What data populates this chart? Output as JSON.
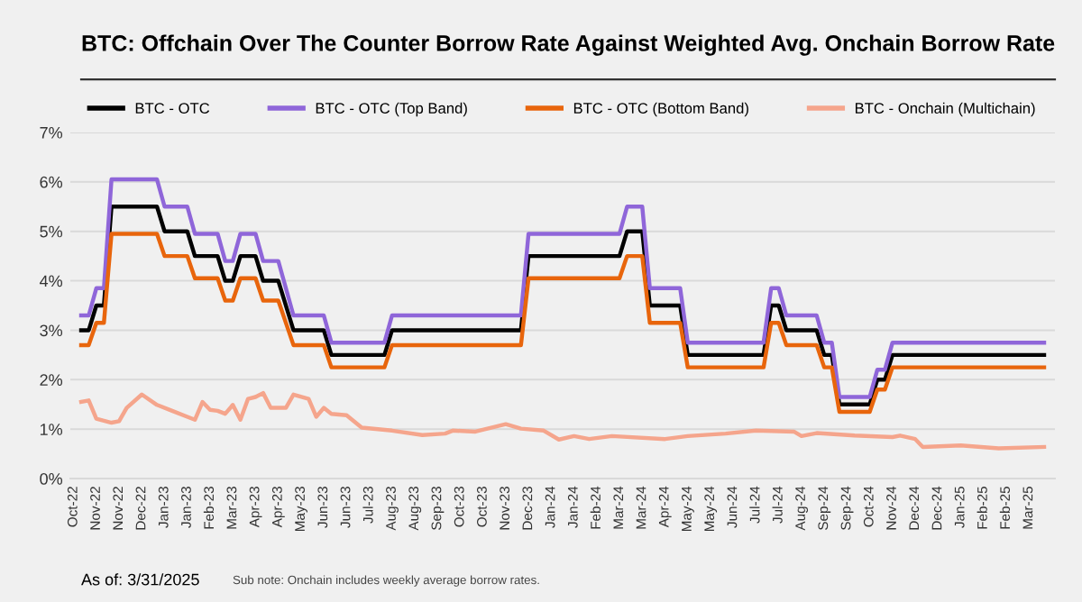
{
  "chart_data": {
    "type": "line",
    "title": "BTC: Offchain Over The Counter Borrow Rate Against Weighted Avg. Onchain Borrow Rate",
    "annotations": [
      "As of: 3/31/2025",
      "Sub note: Onchain includes weekly average borrow rates."
    ],
    "xlim": [
      "2022-10-14",
      "2025-04-10"
    ],
    "xticks": [
      {
        "value": "2022-10-17",
        "label": "Oct-22"
      },
      {
        "value": "2022-11-07",
        "label": "Nov-22"
      },
      {
        "value": "2022-11-28",
        "label": "Nov-22"
      },
      {
        "value": "2022-12-19",
        "label": "Dec-22"
      },
      {
        "value": "2023-01-09",
        "label": "Jan-23"
      },
      {
        "value": "2023-01-30",
        "label": "Jan-23"
      },
      {
        "value": "2023-02-20",
        "label": "Feb-23"
      },
      {
        "value": "2023-03-13",
        "label": "Mar-23"
      },
      {
        "value": "2023-04-03",
        "label": "Apr-23"
      },
      {
        "value": "2023-04-24",
        "label": "Apr-23"
      },
      {
        "value": "2023-05-15",
        "label": "May-23"
      },
      {
        "value": "2023-06-05",
        "label": "Jun-23"
      },
      {
        "value": "2023-06-26",
        "label": "Jun-23"
      },
      {
        "value": "2023-07-17",
        "label": "Jul-23"
      },
      {
        "value": "2023-08-07",
        "label": "Aug-23"
      },
      {
        "value": "2023-08-28",
        "label": "Aug-23"
      },
      {
        "value": "2023-09-18",
        "label": "Sep-23"
      },
      {
        "value": "2023-10-09",
        "label": "Oct-23"
      },
      {
        "value": "2023-10-30",
        "label": "Oct-23"
      },
      {
        "value": "2023-11-20",
        "label": "Nov-23"
      },
      {
        "value": "2023-12-11",
        "label": "Dec-23"
      },
      {
        "value": "2024-01-01",
        "label": "Jan-24"
      },
      {
        "value": "2024-01-22",
        "label": "Jan-24"
      },
      {
        "value": "2024-02-12",
        "label": "Feb-24"
      },
      {
        "value": "2024-03-04",
        "label": "Mar-24"
      },
      {
        "value": "2024-03-25",
        "label": "Mar-24"
      },
      {
        "value": "2024-04-15",
        "label": "Apr-24"
      },
      {
        "value": "2024-05-06",
        "label": "May-24"
      },
      {
        "value": "2024-05-27",
        "label": "May-24"
      },
      {
        "value": "2024-06-17",
        "label": "Jun-24"
      },
      {
        "value": "2024-07-08",
        "label": "Jul-24"
      },
      {
        "value": "2024-07-29",
        "label": "Jul-24"
      },
      {
        "value": "2024-08-19",
        "label": "Aug-24"
      },
      {
        "value": "2024-09-09",
        "label": "Sep-24"
      },
      {
        "value": "2024-09-30",
        "label": "Sep-24"
      },
      {
        "value": "2024-10-21",
        "label": "Oct-24"
      },
      {
        "value": "2024-11-11",
        "label": "Nov-24"
      },
      {
        "value": "2024-12-02",
        "label": "Dec-24"
      },
      {
        "value": "2024-12-23",
        "label": "Dec-24"
      },
      {
        "value": "2025-01-13",
        "label": "Jan-25"
      },
      {
        "value": "2025-02-03",
        "label": "Feb-25"
      },
      {
        "value": "2025-02-24",
        "label": "Feb-25"
      },
      {
        "value": "2025-03-17",
        "label": "Mar-25"
      }
    ],
    "ylim": [
      0,
      7
    ],
    "yticks": [
      {
        "value": 0,
        "label": "0%"
      },
      {
        "value": 1,
        "label": "1%"
      },
      {
        "value": 2,
        "label": "2%"
      },
      {
        "value": 3,
        "label": "3%"
      },
      {
        "value": 4,
        "label": "4%"
      },
      {
        "value": 5,
        "label": "5%"
      },
      {
        "value": 6,
        "label": "6%"
      },
      {
        "value": 7,
        "label": "7%"
      }
    ],
    "grid": "y",
    "legend": "top",
    "marker": "none",
    "line_style": "solid",
    "series": [
      {
        "name": "BTC - OTC",
        "color": "#000000",
        "x": [
          "2022-10-24",
          "2022-10-31",
          "2022-11-07",
          "2022-11-14",
          "2022-11-21",
          "2023-01-02",
          "2023-01-09",
          "2023-01-30",
          "2023-02-06",
          "2023-02-27",
          "2023-03-06",
          "2023-03-13",
          "2023-03-20",
          "2023-04-03",
          "2023-04-10",
          "2023-04-24",
          "2023-05-08",
          "2023-06-05",
          "2023-06-12",
          "2023-07-31",
          "2023-08-07",
          "2023-12-04",
          "2023-12-11",
          "2024-03-04",
          "2024-03-11",
          "2024-03-25",
          "2024-04-01",
          "2024-04-29",
          "2024-05-06",
          "2024-07-15",
          "2024-07-22",
          "2024-07-29",
          "2024-08-05",
          "2024-09-02",
          "2024-09-09",
          "2024-09-16",
          "2024-09-23",
          "2024-10-21",
          "2024-10-28",
          "2024-11-04",
          "2024-11-11",
          "2025-03-31"
        ],
        "values": [
          3.0,
          3.0,
          3.5,
          3.5,
          5.5,
          5.5,
          5.0,
          5.0,
          4.5,
          4.5,
          4.0,
          4.0,
          4.5,
          4.5,
          4.0,
          4.0,
          3.0,
          3.0,
          2.5,
          2.5,
          3.0,
          3.0,
          4.5,
          4.5,
          5.0,
          5.0,
          3.5,
          3.5,
          2.5,
          2.5,
          3.5,
          3.5,
          3.0,
          3.0,
          2.5,
          2.5,
          1.5,
          1.5,
          2.0,
          2.0,
          2.5,
          2.5
        ]
      },
      {
        "name": "BTC - OTC (Top Band)",
        "color": "#8f66d9",
        "x": [
          "2022-10-24",
          "2022-10-31",
          "2022-11-07",
          "2022-11-14",
          "2022-11-21",
          "2023-01-02",
          "2023-01-09",
          "2023-01-30",
          "2023-02-06",
          "2023-02-27",
          "2023-03-06",
          "2023-03-13",
          "2023-03-20",
          "2023-04-03",
          "2023-04-10",
          "2023-04-24",
          "2023-05-08",
          "2023-06-05",
          "2023-06-12",
          "2023-07-31",
          "2023-08-07",
          "2023-12-04",
          "2023-12-11",
          "2024-03-04",
          "2024-03-11",
          "2024-03-25",
          "2024-04-01",
          "2024-04-29",
          "2024-05-06",
          "2024-07-15",
          "2024-07-22",
          "2024-07-29",
          "2024-08-05",
          "2024-09-02",
          "2024-09-09",
          "2024-09-16",
          "2024-09-23",
          "2024-10-21",
          "2024-10-28",
          "2024-11-04",
          "2024-11-11",
          "2025-03-31"
        ],
        "values": [
          3.3,
          3.3,
          3.85,
          3.85,
          6.05,
          6.05,
          5.5,
          5.5,
          4.95,
          4.95,
          4.4,
          4.4,
          4.95,
          4.95,
          4.4,
          4.4,
          3.3,
          3.3,
          2.75,
          2.75,
          3.3,
          3.3,
          4.95,
          4.95,
          5.5,
          5.5,
          3.85,
          3.85,
          2.75,
          2.75,
          3.85,
          3.85,
          3.3,
          3.3,
          2.75,
          2.75,
          1.65,
          1.65,
          2.2,
          2.2,
          2.75,
          2.75
        ]
      },
      {
        "name": "BTC - OTC (Bottom Band)",
        "color": "#e8650c",
        "x": [
          "2022-10-24",
          "2022-10-31",
          "2022-11-07",
          "2022-11-14",
          "2022-11-21",
          "2023-01-02",
          "2023-01-09",
          "2023-01-30",
          "2023-02-06",
          "2023-02-27",
          "2023-03-06",
          "2023-03-13",
          "2023-03-20",
          "2023-04-03",
          "2023-04-10",
          "2023-04-24",
          "2023-05-08",
          "2023-06-05",
          "2023-06-12",
          "2023-07-31",
          "2023-08-07",
          "2023-12-04",
          "2023-12-11",
          "2024-03-04",
          "2024-03-11",
          "2024-03-25",
          "2024-04-01",
          "2024-04-29",
          "2024-05-06",
          "2024-07-15",
          "2024-07-22",
          "2024-07-29",
          "2024-08-05",
          "2024-09-02",
          "2024-09-09",
          "2024-09-16",
          "2024-09-23",
          "2024-10-21",
          "2024-10-28",
          "2024-11-04",
          "2024-11-11",
          "2025-03-31"
        ],
        "values": [
          2.7,
          2.7,
          3.15,
          3.15,
          4.95,
          4.95,
          4.5,
          4.5,
          4.05,
          4.05,
          3.6,
          3.6,
          4.05,
          4.05,
          3.6,
          3.6,
          2.7,
          2.7,
          2.25,
          2.25,
          2.7,
          2.7,
          4.05,
          4.05,
          4.5,
          4.5,
          3.15,
          3.15,
          2.25,
          2.25,
          3.15,
          3.15,
          2.7,
          2.7,
          2.25,
          2.25,
          1.35,
          1.35,
          1.8,
          1.8,
          2.25,
          2.25
        ]
      },
      {
        "name": "BTC - Onchain (Multichain)",
        "color": "#f5a58c",
        "x": [
          "2022-10-24",
          "2022-10-31",
          "2022-11-07",
          "2022-11-21",
          "2022-11-28",
          "2022-12-05",
          "2022-12-19",
          "2023-01-02",
          "2023-01-16",
          "2023-01-30",
          "2023-02-06",
          "2023-02-13",
          "2023-02-20",
          "2023-02-27",
          "2023-03-06",
          "2023-03-13",
          "2023-03-20",
          "2023-03-27",
          "2023-04-03",
          "2023-04-10",
          "2023-04-17",
          "2023-05-01",
          "2023-05-08",
          "2023-05-22",
          "2023-05-29",
          "2023-06-05",
          "2023-06-12",
          "2023-06-26",
          "2023-07-10",
          "2023-08-07",
          "2023-09-04",
          "2023-09-25",
          "2023-10-02",
          "2023-10-23",
          "2023-11-20",
          "2023-12-04",
          "2023-12-25",
          "2024-01-08",
          "2024-01-22",
          "2024-02-05",
          "2024-02-26",
          "2024-04-15",
          "2024-05-06",
          "2024-06-10",
          "2024-07-08",
          "2024-08-12",
          "2024-08-19",
          "2024-09-02",
          "2024-10-07",
          "2024-11-11",
          "2024-11-18",
          "2024-12-02",
          "2024-12-09",
          "2025-01-13",
          "2025-02-17",
          "2025-03-31"
        ],
        "values": [
          1.55,
          1.58,
          1.21,
          1.13,
          1.16,
          1.43,
          1.7,
          1.49,
          1.37,
          1.25,
          1.19,
          1.55,
          1.39,
          1.37,
          1.31,
          1.49,
          1.19,
          1.61,
          1.65,
          1.73,
          1.43,
          1.43,
          1.7,
          1.61,
          1.25,
          1.43,
          1.31,
          1.28,
          1.03,
          0.97,
          0.88,
          0.91,
          0.97,
          0.95,
          1.1,
          1.01,
          0.97,
          0.79,
          0.86,
          0.8,
          0.86,
          0.8,
          0.86,
          0.91,
          0.97,
          0.95,
          0.86,
          0.92,
          0.87,
          0.84,
          0.87,
          0.8,
          0.64,
          0.67,
          0.61,
          0.64
        ]
      }
    ]
  }
}
